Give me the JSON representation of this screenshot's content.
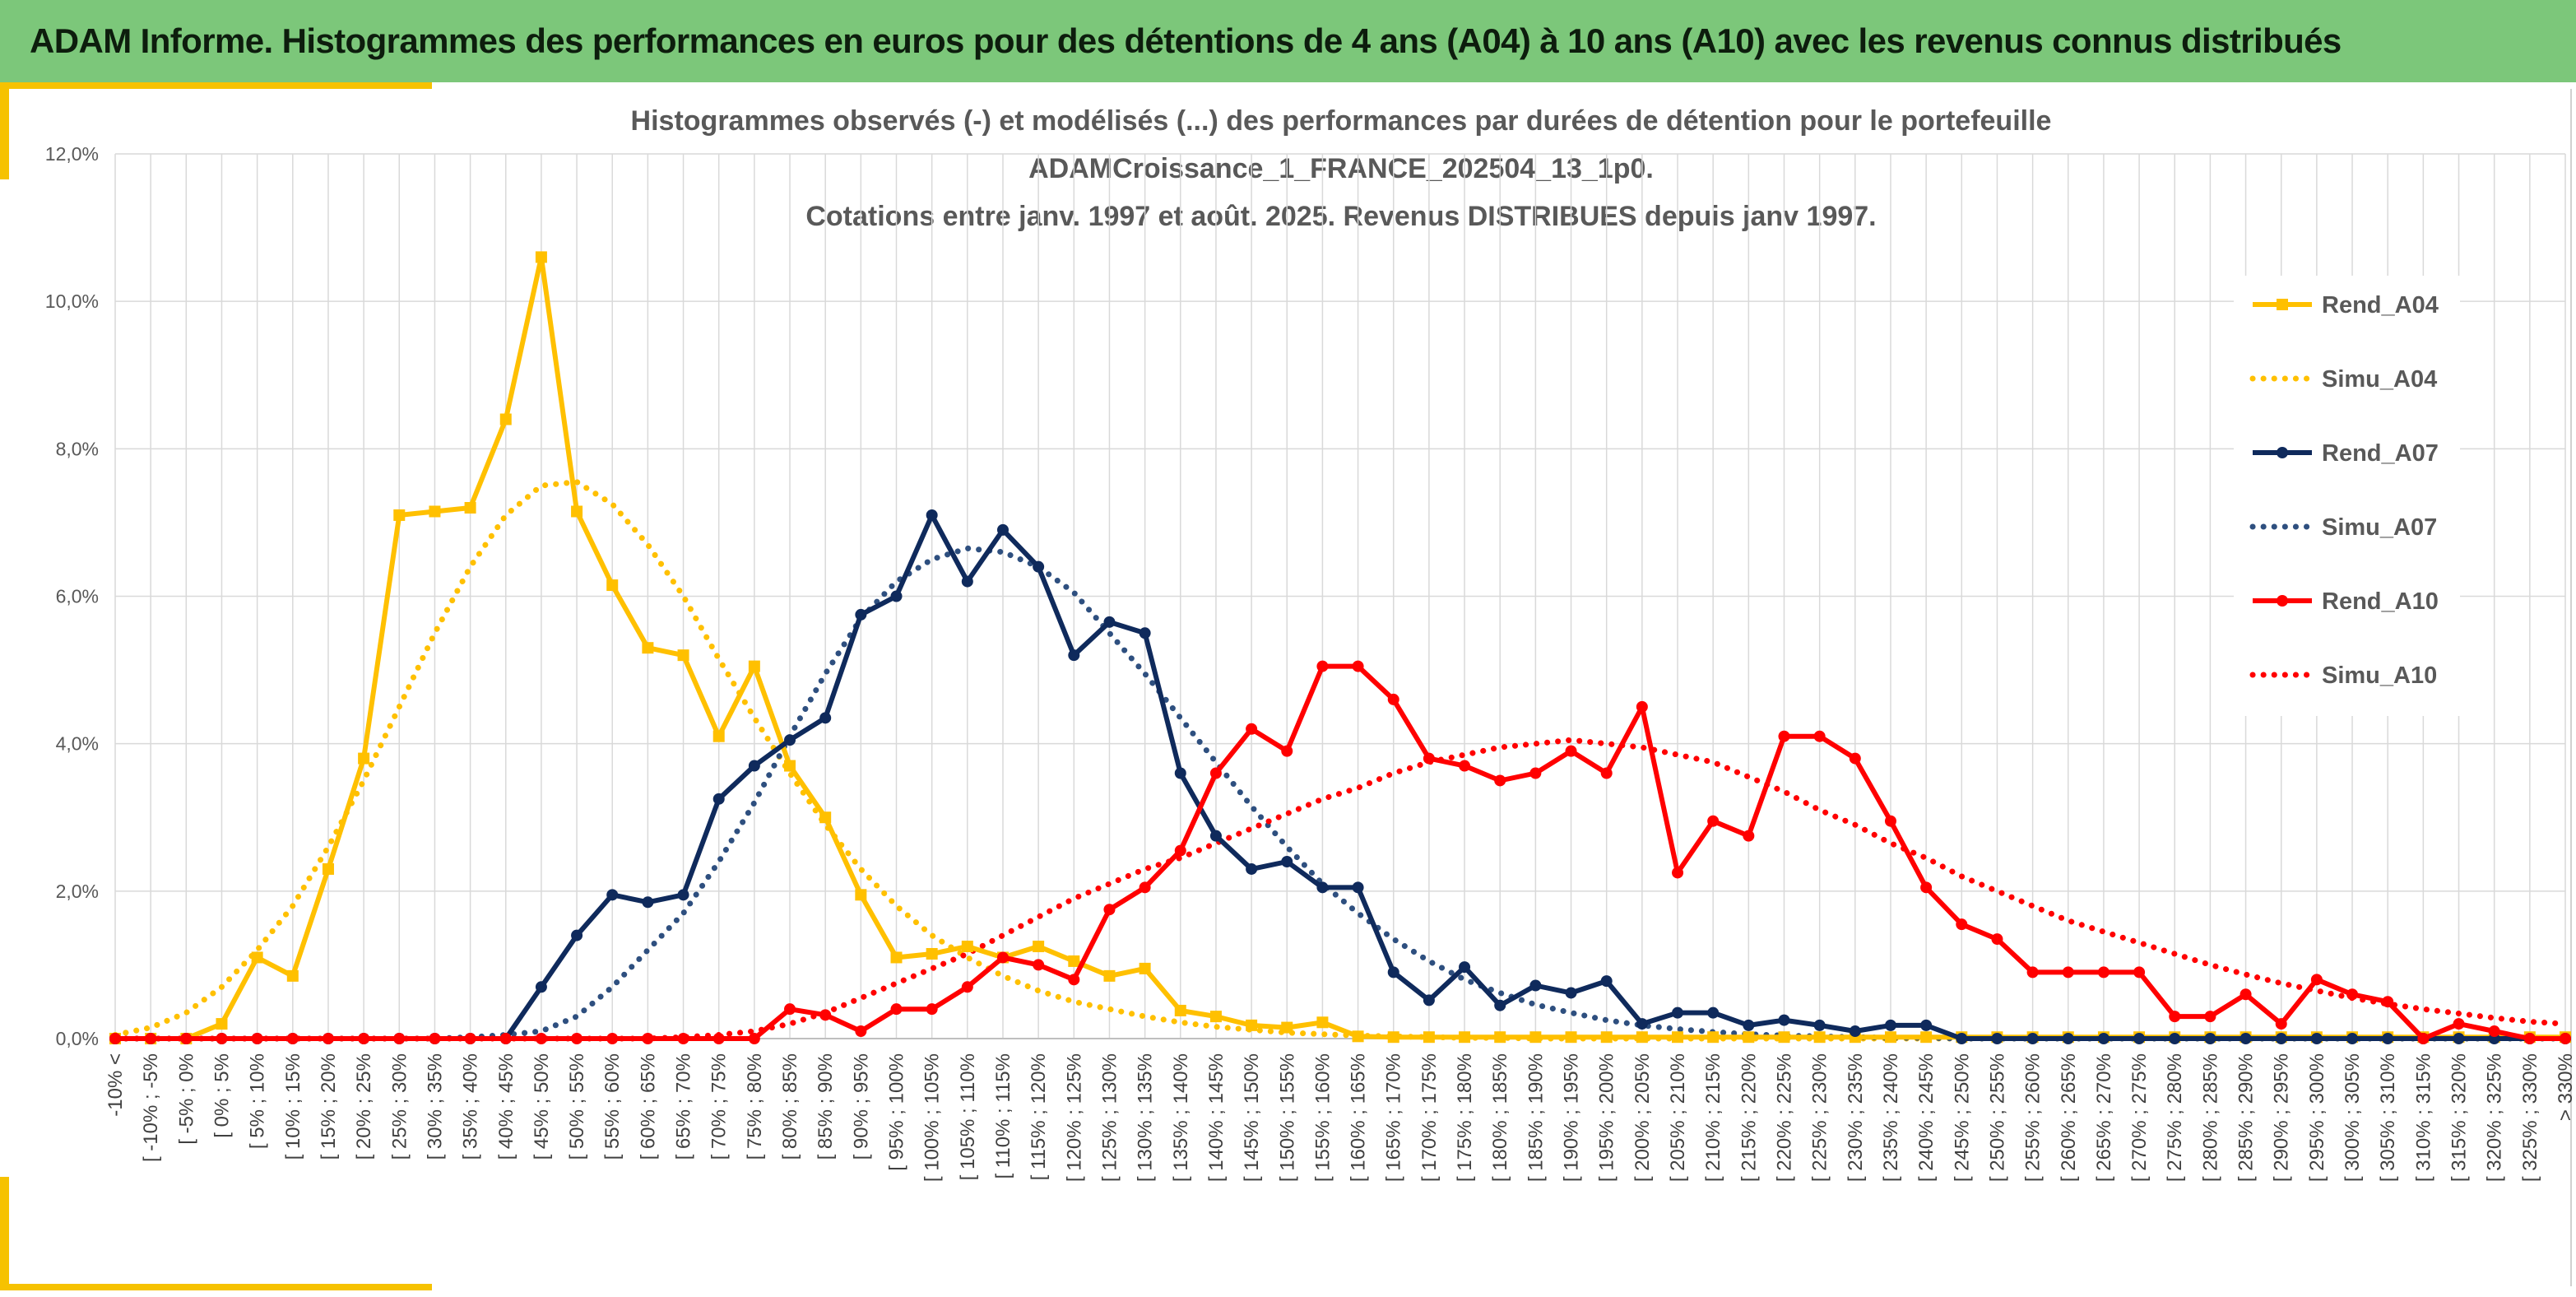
{
  "banner": {
    "title": "ADAM Informe. Histogrammes des performances en euros pour des détentions de 4 ans (A04) à 10 ans (A10) avec les revenus connus distribués"
  },
  "colors": {
    "banner_bg": "#7cc77a",
    "accent_bar": "#f6c200",
    "A04": "#ffc000",
    "A07": "#0f2a5c",
    "Simu_A07": "#2e4f7f",
    "A10": "#ff0000"
  },
  "chart_data": {
    "type": "line",
    "title_lines": [
      "Histogrammes observés (-) et modélisés (...) des performances par durées de détention pour le portefeuille",
      "ADAMCroissance_1_FRANCE_202504_13_1p0.",
      "Cotations entre janv. 1997 et août. 2025. Revenus DISTRIBUES depuis janv 1997."
    ],
    "ylim": [
      0,
      12
    ],
    "y_ticks": [
      "0,0%",
      "2,0%",
      "4,0%",
      "6,0%",
      "8,0%",
      "10,0%",
      "12,0%"
    ],
    "grid": true,
    "legend_position": "right",
    "categories": [
      "-10% <",
      "[ -10% ; -5%",
      "[ -5% ; 0%",
      "[ 0% ; 5%",
      "[ 5% ; 10%",
      "[ 10% ; 15%",
      "[ 15% ; 20%",
      "[ 20% ; 25%",
      "[ 25% ; 30%",
      "[ 30% ; 35%",
      "[ 35% ; 40%",
      "[ 40% ; 45%",
      "[ 45% ; 50%",
      "[ 50% ; 55%",
      "[ 55% ; 60%",
      "[ 60% ; 65%",
      "[ 65% ; 70%",
      "[ 70% ; 75%",
      "[ 75% ; 80%",
      "[ 80% ; 85%",
      "[ 85% ; 90%",
      "[ 90% ; 95%",
      "[ 95% ; 100%",
      "[ 100% ; 105%",
      "[ 105% ; 110%",
      "[ 110% ; 115%",
      "[ 115% ; 120%",
      "[ 120% ; 125%",
      "[ 125% ; 130%",
      "[ 130% ; 135%",
      "[ 135% ; 140%",
      "[ 140% ; 145%",
      "[ 145% ; 150%",
      "[ 150% ; 155%",
      "[ 155% ; 160%",
      "[ 160% ; 165%",
      "[ 165% ; 170%",
      "[ 170% ; 175%",
      "[ 175% ; 180%",
      "[ 180% ; 185%",
      "[ 185% ; 190%",
      "[ 190% ; 195%",
      "[ 195% ; 200%",
      "[ 200% ; 205%",
      "[ 205% ; 210%",
      "[ 210% ; 215%",
      "[ 215% ; 220%",
      "[ 220% ; 225%",
      "[ 225% ; 230%",
      "[ 230% ; 235%",
      "[ 235% ; 240%",
      "[ 240% ; 245%",
      "[ 245% ; 250%",
      "[ 250% ; 255%",
      "[ 255% ; 260%",
      "[ 260% ; 265%",
      "[ 265% ; 270%",
      "[ 270% ; 275%",
      "[ 275% ; 280%",
      "[ 280% ; 285%",
      "[ 285% ; 290%",
      "[ 290% ; 295%",
      "[ 295% ; 300%",
      "[ 300% ; 305%",
      "[ 305% ; 310%",
      "[ 310% ; 315%",
      "[ 315% ; 320%",
      "[ 320% ; 325%",
      "[ 325% ; 330%",
      "> 330%"
    ],
    "series": [
      {
        "name": "Rend_A04",
        "color": "#ffc000",
        "style": "solid",
        "marker": "square",
        "values": [
          0,
          0,
          0,
          0.2,
          1.1,
          0.85,
          2.3,
          3.8,
          7.1,
          7.15,
          7.2,
          8.4,
          10.6,
          7.15,
          6.15,
          5.3,
          5.2,
          4.1,
          5.05,
          3.7,
          3.0,
          1.95,
          1.1,
          1.15,
          1.25,
          1.1,
          1.25,
          1.05,
          0.85,
          0.95,
          0.38,
          0.3,
          0.18,
          0.15,
          0.22,
          0.03,
          0.02,
          0.02,
          0.02,
          0.02,
          0.02,
          0.02,
          0.02,
          0.02,
          0.02,
          0.02,
          0.02,
          0.02,
          0.02,
          0.02,
          0.02,
          0.02,
          0.02,
          0.02,
          0.02,
          0.02,
          0.02,
          0.02,
          0.02,
          0.02,
          0.02,
          0.02,
          0.02,
          0.02,
          0.02,
          0.02,
          0.02,
          0.02,
          0.02,
          0.02
        ]
      },
      {
        "name": "Simu_A04",
        "color": "#ffc000",
        "style": "dotted",
        "values": [
          0.05,
          0.15,
          0.35,
          0.7,
          1.2,
          1.8,
          2.6,
          3.5,
          4.5,
          5.5,
          6.4,
          7.1,
          7.5,
          7.55,
          7.25,
          6.7,
          6.0,
          5.15,
          4.35,
          3.6,
          2.9,
          2.3,
          1.8,
          1.4,
          1.1,
          0.85,
          0.65,
          0.5,
          0.4,
          0.3,
          0.22,
          0.16,
          0.12,
          0.08,
          0.06,
          0.04,
          0.03,
          0.02,
          0.01,
          0.01,
          0,
          0,
          0,
          0,
          0,
          0,
          0,
          0,
          0,
          0,
          0,
          0,
          0,
          0,
          0,
          0,
          0,
          0,
          0,
          0,
          0,
          0,
          0,
          0,
          0,
          0,
          0,
          0,
          0,
          0
        ]
      },
      {
        "name": "Rend_A07",
        "color": "#0f2a5c",
        "style": "solid",
        "marker": "circle",
        "values": [
          0,
          0,
          0,
          0,
          0,
          0,
          0,
          0,
          0,
          0,
          0,
          0,
          0.7,
          1.4,
          1.95,
          1.85,
          1.95,
          3.25,
          3.7,
          4.05,
          4.35,
          5.75,
          6.0,
          7.1,
          6.2,
          6.9,
          6.4,
          5.2,
          5.65,
          5.5,
          3.6,
          2.75,
          2.3,
          2.4,
          2.05,
          2.05,
          0.9,
          0.52,
          0.97,
          0.45,
          0.72,
          0.62,
          0.78,
          0.2,
          0.35,
          0.35,
          0.18,
          0.25,
          0.18,
          0.1,
          0.18,
          0.18,
          0,
          0,
          0,
          0,
          0,
          0,
          0,
          0,
          0,
          0,
          0,
          0,
          0,
          0,
          0,
          0,
          0,
          0
        ]
      },
      {
        "name": "Simu_A07",
        "color": "#2e4f7f",
        "style": "dotted",
        "values": [
          0,
          0,
          0,
          0,
          0,
          0,
          0,
          0,
          0,
          0,
          0.02,
          0.05,
          0.1,
          0.3,
          0.7,
          1.2,
          1.7,
          2.4,
          3.2,
          4.1,
          4.95,
          5.7,
          6.2,
          6.5,
          6.65,
          6.6,
          6.4,
          6.05,
          5.5,
          4.95,
          4.35,
          3.75,
          3.15,
          2.6,
          2.1,
          1.7,
          1.35,
          1.05,
          0.8,
          0.62,
          0.46,
          0.35,
          0.25,
          0.18,
          0.13,
          0.09,
          0.06,
          0.04,
          0.03,
          0.02,
          0.01,
          0.01,
          0,
          0,
          0,
          0,
          0,
          0,
          0,
          0,
          0,
          0,
          0,
          0,
          0,
          0,
          0,
          0,
          0,
          0
        ]
      },
      {
        "name": "Rend_A10",
        "color": "#ff0000",
        "style": "solid",
        "marker": "circle",
        "values": [
          0,
          0,
          0,
          0,
          0,
          0,
          0,
          0,
          0,
          0,
          0,
          0,
          0,
          0,
          0,
          0,
          0,
          0,
          0,
          0.4,
          0.32,
          0.1,
          0.4,
          0.4,
          0.7,
          1.1,
          1.0,
          0.8,
          1.75,
          2.05,
          2.55,
          3.6,
          4.2,
          3.9,
          5.05,
          5.05,
          4.6,
          3.8,
          3.7,
          3.5,
          3.6,
          3.9,
          3.6,
          4.5,
          2.25,
          2.95,
          2.75,
          4.1,
          4.1,
          3.8,
          2.95,
          2.05,
          1.55,
          1.35,
          0.9,
          0.9,
          0.9,
          0.9,
          0.3,
          0.3,
          0.6,
          0.2,
          0.8,
          0.6,
          0.5,
          0,
          0.2,
          0.1,
          0,
          0
        ]
      },
      {
        "name": "Simu_A10",
        "color": "#ff0000",
        "style": "dotted",
        "values": [
          0,
          0,
          0,
          0,
          0,
          0,
          0,
          0,
          0,
          0,
          0,
          0,
          0,
          0,
          0,
          0,
          0.02,
          0.05,
          0.1,
          0.2,
          0.35,
          0.55,
          0.75,
          0.95,
          1.15,
          1.4,
          1.65,
          1.9,
          2.1,
          2.3,
          2.45,
          2.65,
          2.85,
          3.05,
          3.25,
          3.4,
          3.6,
          3.75,
          3.85,
          3.95,
          4.0,
          4.05,
          4.0,
          3.95,
          3.85,
          3.75,
          3.55,
          3.35,
          3.1,
          2.9,
          2.65,
          2.45,
          2.2,
          2.0,
          1.8,
          1.6,
          1.45,
          1.3,
          1.15,
          1.0,
          0.87,
          0.75,
          0.65,
          0.55,
          0.47,
          0.4,
          0.34,
          0.28,
          0.23,
          0.2
        ]
      }
    ]
  }
}
